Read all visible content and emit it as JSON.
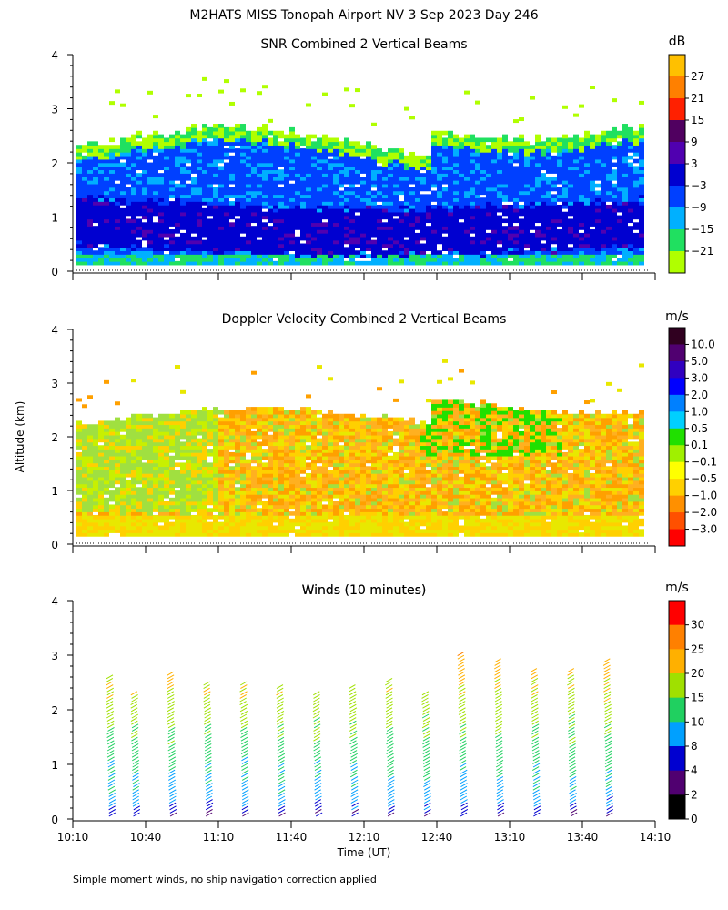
{
  "header": {
    "title": "M2HATS MISS Tonopah Airport NV   3 Sep 2023 Day 246",
    "footnote": "Simple moment winds, no ship navigation correction applied",
    "y_axis_label": "Altitude (km)",
    "x_axis_label": "Time (UT)"
  },
  "chart_data": [
    {
      "type": "heatmap",
      "id": "snr",
      "title": "SNR Combined 2 Vertical Beams",
      "units": "dB",
      "ylim": [
        0,
        4
      ],
      "yticks": [
        "0",
        "1",
        "2",
        "3",
        "4"
      ],
      "xlim": [
        "10:10",
        "14:10"
      ],
      "colorbar": {
        "labels": [
          "27",
          "21",
          "15",
          "9",
          "3",
          "−3",
          "−9",
          "−15",
          "−21"
        ],
        "colors": [
          "#ffc000",
          "#ff8000",
          "#ff2000",
          "#500060",
          "#5000b0",
          "#0000d0",
          "#0040ff",
          "#00b0ff",
          "#20e060",
          "#b0ff00"
        ]
      },
      "layers": [
        {
          "level": "weak echo (−21 to −9 dB)",
          "color": "#c0ff20",
          "altitude_km": [
            0.1,
            2.5
          ]
        },
        {
          "level": "−9 to −3 dB",
          "color": "#00b0ff",
          "altitude_km": [
            0.1,
            2.2
          ]
        },
        {
          "level": "strong echo (−3 to 3 dB)",
          "color": "#0000d0",
          "altitude_km": [
            0.5,
            1.4
          ]
        }
      ]
    },
    {
      "type": "heatmap",
      "id": "doppler",
      "title": "Doppler Velocity Combined 2 Vertical Beams",
      "units": "m/s",
      "ylim": [
        0,
        4
      ],
      "yticks": [
        "0",
        "1",
        "2",
        "3",
        "4"
      ],
      "xlim": [
        "10:10",
        "14:10"
      ],
      "colorbar": {
        "labels": [
          "10.0",
          "5.0",
          "3.0",
          "2.0",
          "1.0",
          "0.5",
          "0.1",
          "−0.1",
          "−0.5",
          "−1.0",
          "−2.0",
          "−3.0"
        ],
        "colors": [
          "#300020",
          "#500070",
          "#3000c0",
          "#0000ff",
          "#0080ff",
          "#00d0ff",
          "#20e000",
          "#a0f000",
          "#ffff00",
          "#ffd000",
          "#ff9000",
          "#ff5000",
          "#ff0000"
        ]
      },
      "layers": [
        {
          "level": "−0.5 to −1.0 m/s (mostly descending)",
          "color": "#ffa000",
          "altitude_km": [
            0.15,
            2.3
          ]
        },
        {
          "level": "−0.1 to −0.5 m/s",
          "color": "#e8e800",
          "altitude_km": [
            0.15,
            2.2
          ]
        },
        {
          "level": "0.1 to 0.5 m/s",
          "color": "#a0e040",
          "altitude_km": [
            0.5,
            2.2
          ]
        }
      ]
    },
    {
      "type": "barbs",
      "id": "winds",
      "title": "Winds (10 minutes)",
      "units": "m/s",
      "ylim": [
        0,
        4
      ],
      "yticks": [
        "0",
        "1",
        "2",
        "3",
        "4"
      ],
      "x": [
        "10:10",
        "10:40",
        "11:10",
        "11:40",
        "12:10",
        "12:40",
        "13:10",
        "13:40",
        "14:10"
      ],
      "profile_times_minutes_since_1010": [
        15,
        25,
        40,
        55,
        70,
        85,
        100,
        115,
        130,
        145,
        160,
        175,
        190,
        205,
        220
      ],
      "colorbar": {
        "labels": [
          "30",
          "25",
          "20",
          "15",
          "10",
          "8",
          "4",
          "2",
          "0"
        ],
        "colors": [
          "#ff0000",
          "#ff8000",
          "#ffb000",
          "#a0e000",
          "#20d060",
          "#00a0ff",
          "#0000d0",
          "#500070",
          "#000000"
        ]
      },
      "speed_profile_km_ms": [
        [
          0.05,
          4
        ],
        [
          0.3,
          8
        ],
        [
          1.0,
          11
        ],
        [
          1.6,
          14
        ],
        [
          2.2,
          17
        ],
        [
          2.8,
          20
        ],
        [
          3.2,
          24
        ]
      ]
    }
  ]
}
